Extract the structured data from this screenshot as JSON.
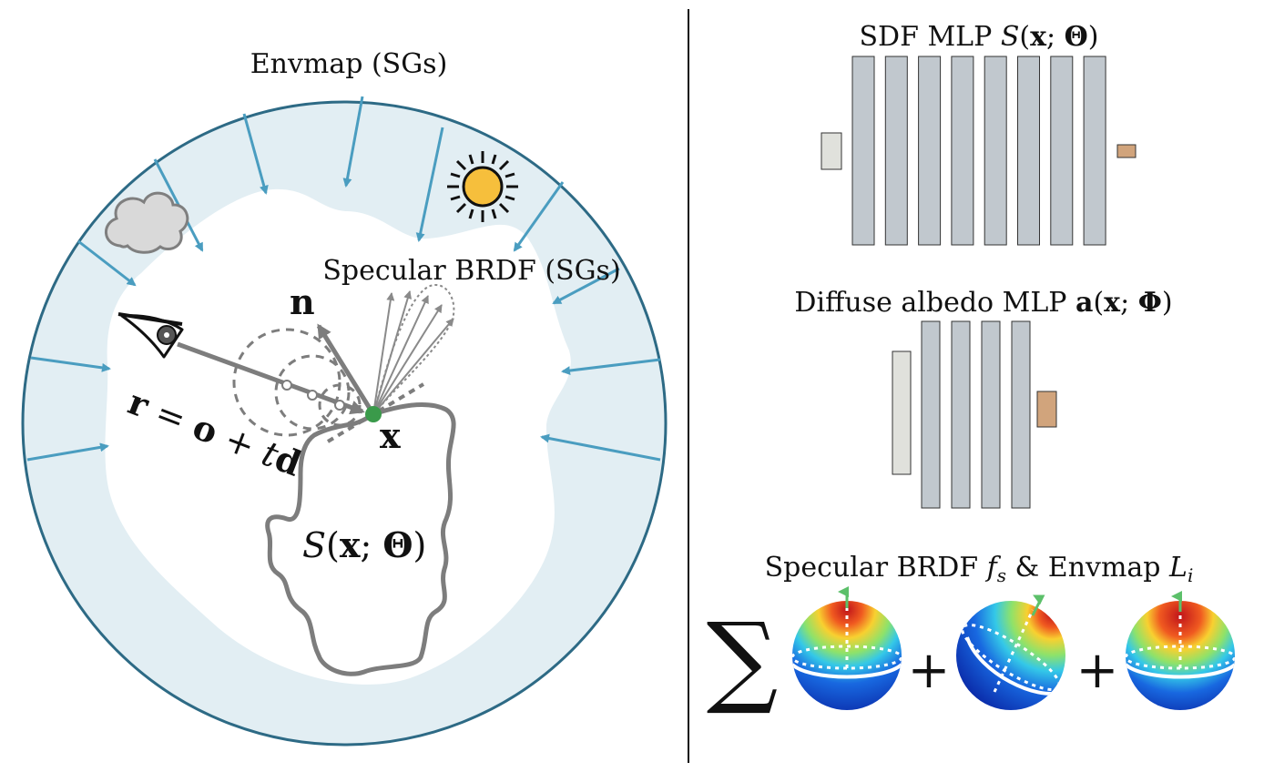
{
  "left": {
    "envmap_label": "Envmap (SGs)",
    "specular_label": "Specular BRDF (SGs)",
    "normal_label": "n",
    "point_label": "x",
    "ray_label": {
      "r": "r",
      "eq": " = ",
      "o": "o",
      "plus": " + ",
      "t": "t",
      "d": "d"
    },
    "surface_label": {
      "S": "S",
      "open": "(",
      "x": "x",
      "semi": "; ",
      "theta": "Θ",
      "close": ")"
    },
    "icons": [
      "eye-icon",
      "cloud-icon",
      "sun-icon"
    ],
    "colors": {
      "env_ring": "#e2eef3",
      "env_border": "#2d6a85",
      "env_arrow": "#4a9dc0",
      "surface_point": "#3a9a4a",
      "sun": "#f6bf3c",
      "gray_line": "#7d7d7d"
    }
  },
  "right": {
    "sdf": {
      "prefix": "SDF  MLP ",
      "fn": "S",
      "open": "(",
      "x": "x",
      "semi": "; ",
      "param": "Θ",
      "close": ")",
      "hidden_layers": 8
    },
    "albedo": {
      "prefix": "Diffuse albedo MLP ",
      "fn": "a",
      "open": "(",
      "x": "x",
      "semi": "; ",
      "param": "Φ",
      "close": ")",
      "hidden_layers": 4
    },
    "sg_sum": {
      "title_a": "Specular BRDF ",
      "fs": "f",
      "fs_sub": "s",
      "amp": "  &  ",
      "title_b": "Envmap ",
      "li": "L",
      "li_sub": "i",
      "sum": "∑",
      "plus": "+"
    },
    "colors": {
      "layer": "#c1c8ce",
      "input": "#e0e1dc",
      "output": "#d1a47c",
      "arrow": "#5cc06a"
    }
  }
}
